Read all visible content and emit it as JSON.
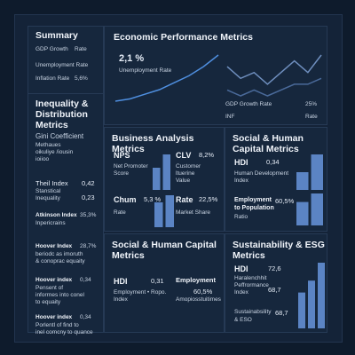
{
  "summary": {
    "title": "Summary",
    "items": [
      "GDP Growth",
      "Rate",
      "Unemployment Rate",
      "Inflation Rate",
      "5,6%"
    ]
  },
  "inequality": {
    "title": "Inequality & Distribution Metrics",
    "gini": {
      "label": "Gini Coefficient",
      "sub1": "Methaues",
      "sub2": "oikuliye /iousin",
      "sub3": "ioiioo"
    },
    "theil": {
      "label": "Theil Index",
      "value": "0,42",
      "sub": "Stanstical",
      "sub2": "Inequality",
      "value2": "0,23"
    },
    "atkinson": {
      "label": "Atkinson Index",
      "value": "35,3%",
      "sub": "Inpericrains"
    },
    "hoover1": {
      "label": "Hoover Index",
      "value": "28,7%",
      "sub1": "beriodc as imoruth",
      "sub2": "& conoprac equaity"
    },
    "hoover2": {
      "label": "Hoover index",
      "value": "0,34",
      "sub1": "Pensent of",
      "sub2": "inforrnes into conel",
      "sub3": "to equaity"
    },
    "hoover3": {
      "label": "Hoover index",
      "value": "0,34",
      "sub1": "Porlentl of find to",
      "sub2": "inel comcny to quance"
    }
  },
  "econ": {
    "title": "Economic Performance Metrics",
    "big_value": "2,1 %",
    "big_label": "Unemployment Rate",
    "gdp_label": "GDP Growth Rate",
    "gdp_value": "25%",
    "inf_label": "INF",
    "inf_rate": "Rate"
  },
  "business": {
    "title": "Business Analysis Metrics",
    "nps": {
      "label": "NPS",
      "sub1": "Net Promoter",
      "sub2": "Score"
    },
    "clv": {
      "label": "CLV",
      "value": "8,2%",
      "sub1": "Customer",
      "sub2": "ltuerine",
      "sub3": "Value"
    },
    "churn": {
      "label": "Chum",
      "value": "5,3 %",
      "sub": "Rate"
    },
    "rate": {
      "label": "Rate",
      "value": "22,5%",
      "sub": "Market Share"
    }
  },
  "social1": {
    "title": "Social & Human Capital Metrics",
    "hdi": {
      "label": "HDI",
      "value": "0,34",
      "sub1": "Human Development",
      "sub2": "Index"
    },
    "emp": {
      "label1": "Employment",
      "label2": "to Population",
      "value": "60,5%",
      "sub": "Ratio"
    }
  },
  "social2": {
    "title": "Social & Human Capital Metrics",
    "hdi": {
      "label": "HDI",
      "value": "0,31",
      "sub1": "Employment • Ropo.",
      "sub2": "Index"
    },
    "emp": {
      "label": "Employment",
      "value": "60,5%",
      "sub": "Amopiosstuitimes"
    }
  },
  "sustain": {
    "title": "Sustainability & ESG Metrics",
    "hdi": {
      "label": "HDI",
      "value": "72,6",
      "sub1": "Haralenchhit",
      "sub2": "Peffrormance",
      "value2": "68,7",
      "sub3": "Index"
    },
    "sust": {
      "label": "Sustainabsility",
      "value": "68,7",
      "sub": "& ESO"
    }
  },
  "chart_data": [
    {
      "type": "line",
      "series": [
        {
          "values": [
            1,
            2,
            4,
            6,
            9,
            12,
            16,
            21
          ]
        }
      ]
    },
    {
      "type": "line",
      "series": [
        {
          "values": [
            8,
            6,
            7,
            5,
            7,
            9,
            7,
            10
          ]
        },
        {
          "values": [
            4,
            3,
            4,
            3,
            4,
            5,
            5,
            6
          ]
        }
      ]
    },
    {
      "type": "bar",
      "values": [
        20,
        32
      ]
    },
    {
      "type": "bar",
      "values": [
        28,
        36
      ]
    },
    {
      "type": "bar",
      "values": [
        14,
        28
      ]
    },
    {
      "type": "bar",
      "values": [
        22,
        30
      ]
    },
    {
      "type": "bar",
      "values": [
        20,
        24
      ]
    },
    {
      "type": "bar",
      "values": [
        24,
        32,
        44
      ]
    }
  ]
}
